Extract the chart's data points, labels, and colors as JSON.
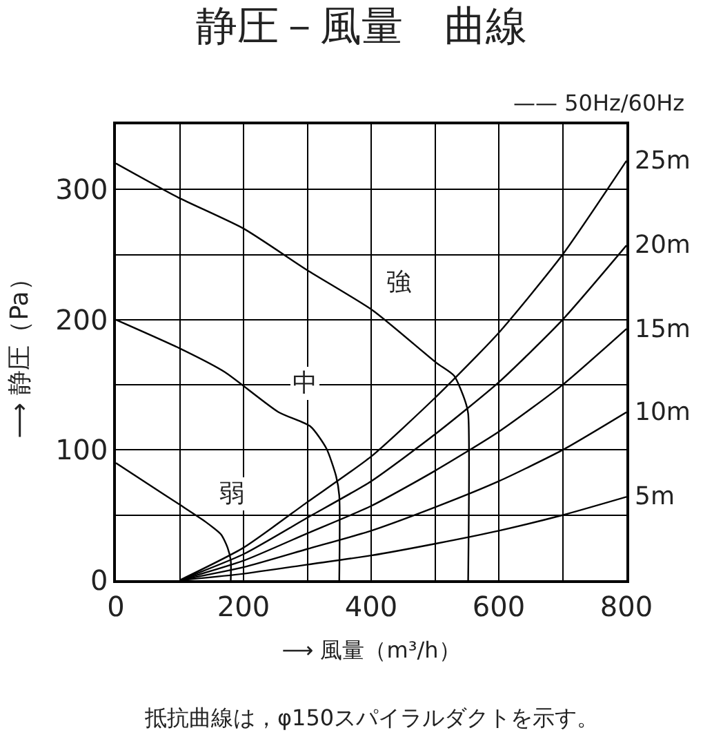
{
  "chart_data": {
    "type": "line",
    "title": "静圧－風量　曲線",
    "subtitle": "—— 50Hz/60Hz",
    "xlabel": "⟶ 風量（m³/h）",
    "ylabel": "⟶ 静圧（Pa）",
    "xlim": [
      0,
      800
    ],
    "ylim": [
      0,
      350
    ],
    "xticks": [
      0,
      {
        "value": 100,
        "label": null
      },
      200,
      {
        "value": 300,
        "label": null
      },
      400,
      {
        "value": 500,
        "label": null
      },
      600,
      {
        "value": 700,
        "label": null
      },
      800
    ],
    "yticks": [
      0,
      {
        "value": 50,
        "label": null
      },
      100,
      {
        "value": 150,
        "label": null
      },
      200,
      {
        "value": 250,
        "label": null
      },
      300,
      {
        "value": 350,
        "label": null
      }
    ],
    "grid": true,
    "marker": "none",
    "line_style": "solid",
    "legend": false,
    "series": [
      {
        "name": "弱",
        "color": "#000000",
        "x": [
          0,
          50,
          100,
          140,
          165,
          175,
          180,
          180
        ],
        "values": [
          90,
          74,
          58,
          45,
          35,
          25,
          15,
          0
        ]
      },
      {
        "name": "中",
        "color": "#000000",
        "x": [
          0,
          100,
          170,
          255,
          305,
          330,
          345,
          350,
          350
        ],
        "values": [
          200,
          178,
          160,
          129,
          118,
          101,
          80,
          65,
          0
        ]
      },
      {
        "name": "強",
        "color": "#000000",
        "x": [
          0,
          97,
          200,
          300,
          403,
          502,
          530,
          547,
          552,
          552
        ],
        "values": [
          320,
          294,
          270,
          238,
          207,
          167,
          157,
          138,
          128,
          0
        ]
      },
      {
        "color": "#000000",
        "x": [
          100,
          200,
          300,
          400,
          500,
          600,
          700,
          800
        ],
        "values": [
          0,
          5,
          12,
          19,
          28,
          38,
          50,
          64
        ],
        "name": "5m"
      },
      {
        "color": "#000000",
        "x": [
          100,
          200,
          300,
          400,
          500,
          600,
          700,
          800
        ],
        "values": [
          0,
          10,
          24,
          38,
          56,
          76,
          100,
          129
        ],
        "name": "10m"
      },
      {
        "color": "#000000",
        "x": [
          100,
          200,
          300,
          400,
          500,
          600,
          700,
          800
        ],
        "values": [
          0,
          15,
          36,
          57,
          84,
          114,
          150,
          193
        ],
        "name": "15m"
      },
      {
        "color": "#000000",
        "x": [
          100,
          200,
          300,
          400,
          500,
          600,
          700,
          800
        ],
        "values": [
          0,
          20,
          48,
          76,
          112,
          152,
          200,
          257
        ],
        "name": "20m"
      },
      {
        "color": "#000000",
        "x": [
          100,
          200,
          300,
          400,
          500,
          600,
          700,
          800
        ],
        "values": [
          0,
          25,
          60,
          95,
          140,
          190,
          250,
          322
        ],
        "name": "25m"
      }
    ],
    "annotations": [
      "抵抗曲線は，φ150スパイラルダクトを示す。"
    ]
  }
}
